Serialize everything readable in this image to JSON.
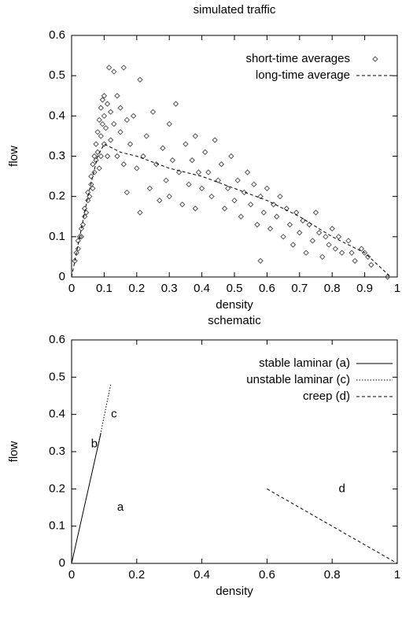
{
  "chart_data": [
    {
      "type": "scatter",
      "title": "simulated traffic",
      "xlabel": "density",
      "ylabel": "flow",
      "xlim": [
        0,
        1
      ],
      "ylim": [
        0,
        0.6
      ],
      "xticks": [
        0,
        0.1,
        0.2,
        0.3,
        0.4,
        0.5,
        0.6,
        0.7,
        0.8,
        0.9,
        1
      ],
      "yticks": [
        0,
        0.1,
        0.2,
        0.3,
        0.4,
        0.5,
        0.6
      ],
      "legend": "top-right",
      "series": [
        {
          "name": "short-time averages",
          "type": "scatter",
          "color": "#555555",
          "x": [
            0.01,
            0.015,
            0.02,
            0.02,
            0.025,
            0.03,
            0.03,
            0.035,
            0.04,
            0.04,
            0.045,
            0.05,
            0.05,
            0.055,
            0.06,
            0.06,
            0.065,
            0.065,
            0.07,
            0.07,
            0.075,
            0.075,
            0.08,
            0.08,
            0.085,
            0.085,
            0.09,
            0.09,
            0.09,
            0.095,
            0.095,
            0.1,
            0.1,
            0.1,
            0.105,
            0.11,
            0.11,
            0.115,
            0.12,
            0.12,
            0.13,
            0.13,
            0.14,
            0.14,
            0.15,
            0.15,
            0.16,
            0.16,
            0.17,
            0.17,
            0.18,
            0.19,
            0.2,
            0.21,
            0.21,
            0.22,
            0.23,
            0.24,
            0.25,
            0.26,
            0.27,
            0.28,
            0.29,
            0.3,
            0.3,
            0.31,
            0.32,
            0.33,
            0.34,
            0.35,
            0.36,
            0.37,
            0.38,
            0.38,
            0.39,
            0.4,
            0.41,
            0.42,
            0.43,
            0.44,
            0.45,
            0.46,
            0.47,
            0.48,
            0.49,
            0.5,
            0.51,
            0.52,
            0.53,
            0.54,
            0.55,
            0.56,
            0.57,
            0.58,
            0.58,
            0.59,
            0.6,
            0.61,
            0.62,
            0.63,
            0.64,
            0.65,
            0.66,
            0.67,
            0.68,
            0.69,
            0.7,
            0.71,
            0.72,
            0.73,
            0.74,
            0.75,
            0.76,
            0.77,
            0.78,
            0.79,
            0.8,
            0.81,
            0.82,
            0.83,
            0.85,
            0.86,
            0.87,
            0.89,
            0.9,
            0.91,
            0.92,
            0.97
          ],
          "y": [
            0.04,
            0.06,
            0.07,
            0.09,
            0.1,
            0.12,
            0.1,
            0.13,
            0.15,
            0.17,
            0.16,
            0.19,
            0.21,
            0.2,
            0.23,
            0.25,
            0.22,
            0.28,
            0.3,
            0.26,
            0.33,
            0.29,
            0.36,
            0.31,
            0.39,
            0.27,
            0.42,
            0.35,
            0.3,
            0.44,
            0.38,
            0.4,
            0.33,
            0.45,
            0.37,
            0.43,
            0.3,
            0.52,
            0.41,
            0.34,
            0.51,
            0.38,
            0.45,
            0.3,
            0.42,
            0.36,
            0.52,
            0.28,
            0.39,
            0.21,
            0.33,
            0.4,
            0.27,
            0.49,
            0.16,
            0.3,
            0.35,
            0.22,
            0.41,
            0.28,
            0.19,
            0.32,
            0.24,
            0.38,
            0.2,
            0.29,
            0.43,
            0.26,
            0.18,
            0.33,
            0.23,
            0.29,
            0.35,
            0.17,
            0.26,
            0.22,
            0.31,
            0.26,
            0.2,
            0.34,
            0.24,
            0.28,
            0.17,
            0.22,
            0.3,
            0.19,
            0.24,
            0.15,
            0.21,
            0.26,
            0.18,
            0.23,
            0.13,
            0.2,
            0.04,
            0.16,
            0.22,
            0.12,
            0.18,
            0.15,
            0.2,
            0.1,
            0.17,
            0.13,
            0.08,
            0.16,
            0.11,
            0.14,
            0.06,
            0.13,
            0.09,
            0.16,
            0.11,
            0.05,
            0.1,
            0.08,
            0.12,
            0.07,
            0.1,
            0.06,
            0.09,
            0.06,
            0.04,
            0.07,
            0.06,
            0.05,
            0.03,
            0
          ]
        },
        {
          "name": "long-time average",
          "type": "line",
          "color": "#000000",
          "dash": "dashed",
          "x": [
            0,
            0.05,
            0.08,
            0.1,
            0.15,
            0.2,
            0.3,
            0.4,
            0.5,
            0.6,
            0.7,
            0.8,
            0.9,
            0.98
          ],
          "y": [
            0,
            0.2,
            0.3,
            0.33,
            0.31,
            0.3,
            0.27,
            0.25,
            0.22,
            0.19,
            0.15,
            0.1,
            0.06,
            0
          ]
        }
      ]
    },
    {
      "type": "line",
      "title": "schematic",
      "xlabel": "density",
      "ylabel": "flow",
      "xlim": [
        0,
        1
      ],
      "ylim": [
        0,
        0.6
      ],
      "xticks": [
        0,
        0.2,
        0.4,
        0.6,
        0.8,
        1
      ],
      "yticks": [
        0,
        0.1,
        0.2,
        0.3,
        0.4,
        0.5,
        0.6
      ],
      "legend": "top-right",
      "series": [
        {
          "name": "stable laminar (a)",
          "type": "line",
          "color": "#000000",
          "dash": "solid",
          "x": [
            0,
            0.09
          ],
          "y": [
            0,
            0.35
          ]
        },
        {
          "name": "unstable laminar (c)",
          "type": "line",
          "color": "#000000",
          "dash": "dotted",
          "x": [
            0.08,
            0.12
          ],
          "y": [
            0.31,
            0.48
          ]
        },
        {
          "name": "creep (d)",
          "type": "line",
          "color": "#000000",
          "dash": "dashed",
          "x": [
            0.6,
            1
          ],
          "y": [
            0.2,
            0
          ]
        }
      ],
      "annotations": [
        "a",
        "b",
        "c",
        "d"
      ]
    }
  ]
}
